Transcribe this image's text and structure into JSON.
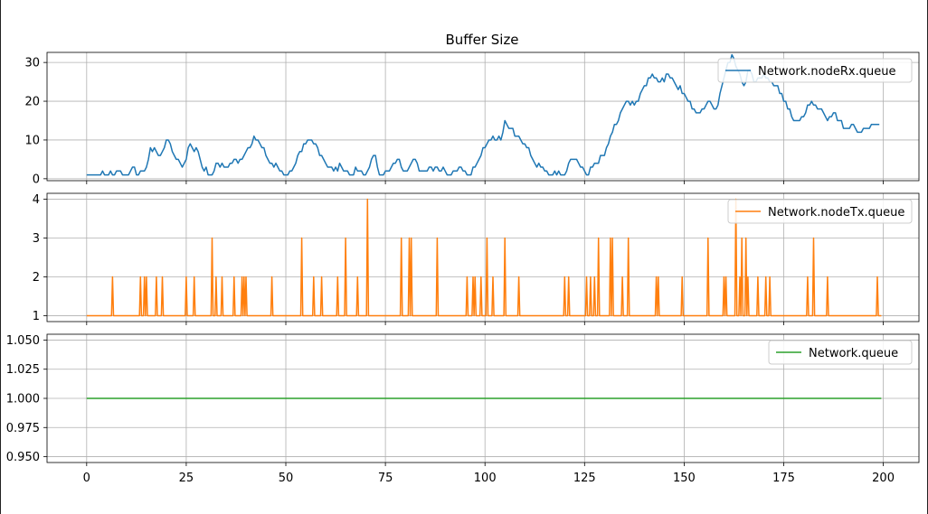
{
  "title": "Buffer Size",
  "chart_data": [
    {
      "type": "line",
      "series": [
        {
          "name": "Network.nodeRx.queue",
          "color": "#1f77b4"
        }
      ],
      "x_keypoints": [
        0,
        5,
        6,
        7,
        8,
        9,
        11,
        12,
        13,
        14,
        15,
        16,
        18,
        19,
        20,
        21,
        22,
        24,
        26,
        28,
        29,
        31,
        33,
        35,
        37,
        38,
        40,
        42,
        44,
        46,
        48,
        50,
        52,
        54,
        56,
        58,
        60,
        62,
        64,
        66,
        68,
        70,
        72,
        74,
        76,
        78,
        80,
        82,
        84,
        86,
        88,
        90,
        92,
        94,
        96,
        98,
        100,
        102,
        104,
        105,
        107,
        108,
        110,
        112,
        114,
        116,
        118,
        120,
        122,
        124,
        126,
        128,
        130,
        132,
        134,
        136,
        138,
        140,
        142,
        144,
        146,
        148,
        150,
        152,
        154,
        156,
        158,
        160,
        162,
        164,
        165,
        166,
        168,
        170,
        172,
        174,
        176,
        178,
        180,
        182,
        184,
        186,
        188,
        190,
        192,
        194,
        196,
        198,
        199
      ],
      "y_keypoints": [
        1,
        1,
        2,
        1,
        2,
        1,
        2,
        3,
        1,
        2,
        3,
        8,
        6,
        7,
        10,
        9,
        6,
        3,
        9,
        7,
        3,
        1,
        4,
        3,
        5,
        4,
        7,
        11,
        8,
        4,
        3,
        1,
        3,
        7,
        10,
        8,
        4,
        2,
        3,
        1,
        2,
        1,
        6,
        1,
        2,
        5,
        2,
        5,
        2,
        3,
        3,
        2,
        2,
        3,
        1,
        4,
        8,
        11,
        10,
        15,
        13,
        11,
        9,
        5,
        3,
        1,
        1,
        1,
        5,
        3,
        1,
        4,
        6,
        12,
        17,
        20,
        20,
        24,
        27,
        25,
        27,
        24,
        22,
        18,
        17,
        20,
        18,
        26,
        32,
        27,
        24,
        28,
        25,
        27,
        25,
        22,
        18,
        15,
        16,
        20,
        18,
        15,
        17,
        13,
        14,
        12,
        13,
        14,
        14
      ],
      "xlim": [
        -9.95,
        208.95
      ],
      "ylim": [
        -0.5,
        32.6
      ],
      "yticks": [
        0,
        10,
        20,
        30
      ],
      "legend_loc": "upper right",
      "grid": true
    },
    {
      "type": "line",
      "series": [
        {
          "name": "Network.nodeTx.queue",
          "color": "#ff7f0e"
        }
      ],
      "baseline": 1,
      "spikes": [
        [
          6.5,
          2
        ],
        [
          13.5,
          2
        ],
        [
          14.5,
          2
        ],
        [
          15,
          2
        ],
        [
          17.5,
          2
        ],
        [
          19,
          2
        ],
        [
          25,
          2
        ],
        [
          27,
          2
        ],
        [
          31.5,
          3
        ],
        [
          32.5,
          2
        ],
        [
          34,
          2
        ],
        [
          37,
          2
        ],
        [
          39,
          2
        ],
        [
          39.5,
          2
        ],
        [
          40,
          2
        ],
        [
          46.5,
          2
        ],
        [
          54,
          3
        ],
        [
          57,
          2
        ],
        [
          59,
          2
        ],
        [
          63,
          2
        ],
        [
          65,
          3
        ],
        [
          68,
          2
        ],
        [
          70.5,
          4
        ],
        [
          79,
          3
        ],
        [
          81,
          3
        ],
        [
          81.5,
          3
        ],
        [
          88,
          3
        ],
        [
          95.5,
          2
        ],
        [
          97,
          2
        ],
        [
          97.5,
          2
        ],
        [
          99,
          2
        ],
        [
          100.5,
          3
        ],
        [
          102,
          2
        ],
        [
          105,
          3
        ],
        [
          108.5,
          2
        ],
        [
          120,
          2
        ],
        [
          121,
          2
        ],
        [
          125.5,
          2
        ],
        [
          126.5,
          2
        ],
        [
          127.5,
          2
        ],
        [
          128.5,
          3
        ],
        [
          131.5,
          3
        ],
        [
          132,
          3
        ],
        [
          134.5,
          2
        ],
        [
          136,
          3
        ],
        [
          143,
          2
        ],
        [
          143.5,
          2
        ],
        [
          149.5,
          2
        ],
        [
          156,
          3
        ],
        [
          160,
          2
        ],
        [
          160.5,
          2
        ],
        [
          163,
          4
        ],
        [
          164,
          2
        ],
        [
          164.5,
          3
        ],
        [
          165.5,
          3
        ],
        [
          166,
          2
        ],
        [
          168.5,
          2
        ],
        [
          170.5,
          2
        ],
        [
          171.5,
          2
        ],
        [
          181,
          2
        ],
        [
          182.5,
          3
        ],
        [
          186,
          2
        ],
        [
          198.5,
          2
        ]
      ],
      "x_start": 0,
      "x_end": 199.5,
      "xlim": [
        -9.95,
        208.95
      ],
      "ylim": [
        0.85,
        4.15
      ],
      "yticks": [
        1,
        2,
        3,
        4
      ],
      "legend_loc": "upper right",
      "grid": true
    },
    {
      "type": "line",
      "series": [
        {
          "name": "Network.queue",
          "color": "#2ca02c"
        }
      ],
      "x": [
        0,
        199.5
      ],
      "y": [
        1,
        1
      ],
      "xlim": [
        -9.95,
        208.95
      ],
      "ylim": [
        0.945,
        1.055
      ],
      "yticks": [
        0.95,
        0.975,
        1.0,
        1.025,
        1.05
      ],
      "ytick_labels": [
        "0.950",
        "0.975",
        "1.000",
        "1.025",
        "1.050"
      ],
      "legend_loc": "upper right",
      "grid": true
    }
  ],
  "xticks": [
    0,
    25,
    50,
    75,
    100,
    125,
    150,
    175,
    200
  ],
  "xtick_labels": [
    "0",
    "25",
    "50",
    "75",
    "100",
    "125",
    "150",
    "175",
    "200"
  ]
}
